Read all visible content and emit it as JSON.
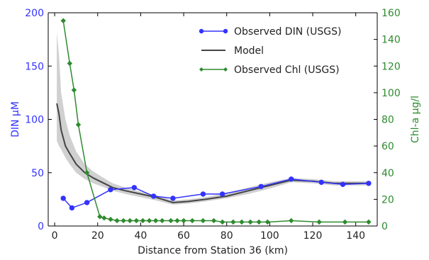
{
  "chart_data": {
    "type": "line",
    "xlabel": "Distance from Station 36 (km)",
    "ylabel_left": "DIN μM",
    "ylabel_right": "Chl-a μg/l",
    "xlim": [
      -3,
      150
    ],
    "ylim_left": [
      0,
      200
    ],
    "ylim_right": [
      0,
      160
    ],
    "xticks": [
      0,
      20,
      40,
      60,
      80,
      100,
      120,
      140
    ],
    "yticks_left": [
      0,
      50,
      100,
      150,
      200
    ],
    "yticks_right": [
      0,
      20,
      40,
      60,
      80,
      100,
      120,
      140,
      160
    ],
    "grid": false,
    "legend_position": "top-right",
    "colors": {
      "din": "#3333ff",
      "model": "#444444",
      "model_band": "#c8c8c8",
      "chl": "#2e8b2e",
      "left_axis": "#3333ff",
      "right_axis": "#2e8b2e",
      "frame": "#000000"
    },
    "series": [
      {
        "name": "Observed DIN (USGS)",
        "axis": "left",
        "marker": "circle",
        "x": [
          4,
          8,
          15,
          26,
          37,
          46,
          55,
          69,
          78,
          96,
          110,
          124,
          134,
          146
        ],
        "y": [
          26,
          17,
          22,
          34,
          36,
          28,
          26,
          30,
          30,
          37,
          44,
          41,
          39,
          40
        ]
      },
      {
        "name": "Model",
        "axis": "left",
        "marker": "none",
        "x": [
          1,
          2,
          3,
          5,
          7,
          10,
          14,
          18,
          22,
          27,
          33,
          40,
          47,
          55,
          62,
          70,
          80,
          90,
          100,
          110,
          120,
          130,
          140,
          146
        ],
        "y": [
          115,
          105,
          90,
          75,
          68,
          58,
          50,
          45,
          41,
          36,
          33,
          30,
          27,
          22,
          23,
          25,
          28,
          33,
          38,
          43,
          42,
          40,
          40,
          40
        ],
        "band_upper": [
          182,
          160,
          125,
          100,
          85,
          70,
          58,
          51,
          46,
          40,
          36,
          32,
          29,
          24,
          25,
          27,
          31,
          36,
          41,
          45,
          44,
          42,
          42,
          42
        ],
        "band_lower": [
          80,
          75,
          72,
          64,
          58,
          50,
          44,
          40,
          37,
          33,
          30,
          27,
          24,
          20,
          21,
          23,
          26,
          30,
          35,
          41,
          40,
          38,
          38,
          38
        ]
      },
      {
        "name": "Observed Chl (USGS)",
        "axis": "right",
        "marker": "diamond",
        "x": [
          4,
          7,
          9,
          11,
          15,
          21,
          23,
          26,
          29,
          32,
          35,
          38,
          41,
          44,
          47,
          50,
          54,
          57,
          60,
          64,
          69,
          74,
          78,
          83,
          87,
          91,
          95,
          99,
          110,
          123,
          135,
          146
        ],
        "y": [
          154,
          122,
          102,
          76,
          40,
          7,
          6,
          5,
          4,
          4,
          4,
          4,
          4,
          4,
          4,
          4,
          4,
          4,
          4,
          4,
          4,
          4,
          3,
          3,
          3,
          3,
          3,
          3,
          4,
          3,
          3,
          3
        ]
      }
    ]
  }
}
